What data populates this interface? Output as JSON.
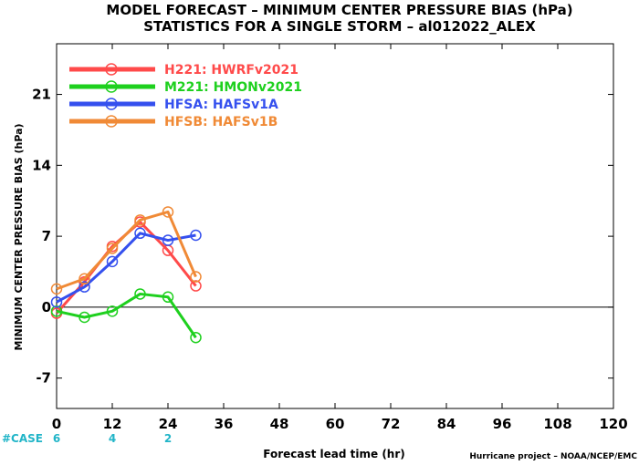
{
  "chart_data": {
    "type": "line",
    "title": "MODEL FORECAST – MINIMUM CENTER PRESSURE BIAS (hPa)",
    "subtitle": "STATISTICS FOR A SINGLE STORM – al012022_ALEX",
    "xlabel": "Forecast lead time (hr)",
    "ylabel": "MINIMUM CENTER PRESSURE BIAS (hPa)",
    "xlim": [
      0,
      120
    ],
    "ylim": [
      -10,
      26
    ],
    "xticks": [
      0,
      12,
      24,
      36,
      48,
      60,
      72,
      84,
      96,
      108,
      120
    ],
    "yticks": [
      -7,
      0,
      7,
      14,
      21
    ],
    "grid": false,
    "zero_line": true,
    "legend_placement": "top-left",
    "x": [
      0,
      6,
      12,
      18,
      24,
      30
    ],
    "series": [
      {
        "name": "H221: HWRFv2021",
        "color": "#ff4a4a",
        "values": [
          -0.6,
          2.5,
          6.0,
          8.4,
          5.6,
          2.1
        ]
      },
      {
        "name": "M221: HMONv2021",
        "color": "#1ed01e",
        "values": [
          -0.4,
          -1.0,
          -0.4,
          1.3,
          1.0,
          -3.0
        ]
      },
      {
        "name": "HFSA: HAFSv1A",
        "color": "#3550ee",
        "values": [
          0.5,
          2.0,
          4.5,
          7.3,
          6.6,
          7.1
        ]
      },
      {
        "name": "HFSB: HAFSv1B",
        "color": "#f08a36",
        "values": [
          1.8,
          2.8,
          5.8,
          8.6,
          9.4,
          3.0
        ]
      }
    ],
    "cases": {
      "label": "#CASE",
      "color": "#22b5c8",
      "x": [
        0,
        12,
        24
      ],
      "values": [
        "6",
        "4",
        "2"
      ]
    },
    "credit": "Hurricane project – NOAA/NCEP/EMC"
  }
}
